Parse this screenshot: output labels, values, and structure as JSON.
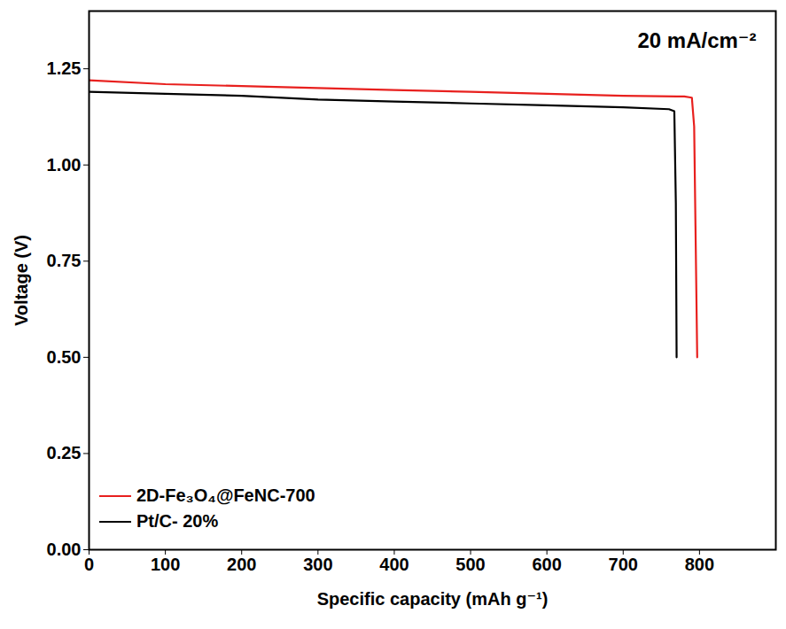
{
  "chart_data": {
    "type": "line",
    "annotation": "20 mA/cm⁻²",
    "x_label": "Specific capacity (mAh g⁻¹)",
    "y_label": "Voltage (V)",
    "series": [
      {
        "name": "2D-Fe₃O₄@FeNC-700",
        "color": "#e8201e",
        "x": [
          0,
          100,
          200,
          300,
          400,
          500,
          600,
          700,
          780,
          790,
          793,
          795,
          797
        ],
        "values": [
          1.22,
          1.21,
          1.205,
          1.2,
          1.195,
          1.19,
          1.185,
          1.18,
          1.178,
          1.175,
          1.1,
          0.8,
          0.5
        ]
      },
      {
        "name": "Pt/C- 20%",
        "color": "#000000",
        "x": [
          0,
          100,
          200,
          300,
          400,
          500,
          600,
          700,
          760,
          767,
          769,
          770
        ],
        "values": [
          1.19,
          1.185,
          1.18,
          1.17,
          1.165,
          1.16,
          1.155,
          1.15,
          1.145,
          1.14,
          0.9,
          0.5
        ]
      }
    ],
    "xlim": [
      0,
      900
    ],
    "xticks": [
      0,
      100,
      200,
      300,
      400,
      500,
      600,
      700,
      800
    ],
    "ylim": [
      0,
      1.4
    ],
    "yticks": [
      {
        "value": 0,
        "label": "0.00"
      },
      {
        "value": 0.25,
        "label": "0.25"
      },
      {
        "value": 0.5,
        "label": "0.50"
      },
      {
        "value": 0.75,
        "label": "0.75"
      },
      {
        "value": 1,
        "label": "1.00"
      },
      {
        "value": 1.25,
        "label": "1.25"
      }
    ],
    "legend": "lower left",
    "grid": false
  }
}
